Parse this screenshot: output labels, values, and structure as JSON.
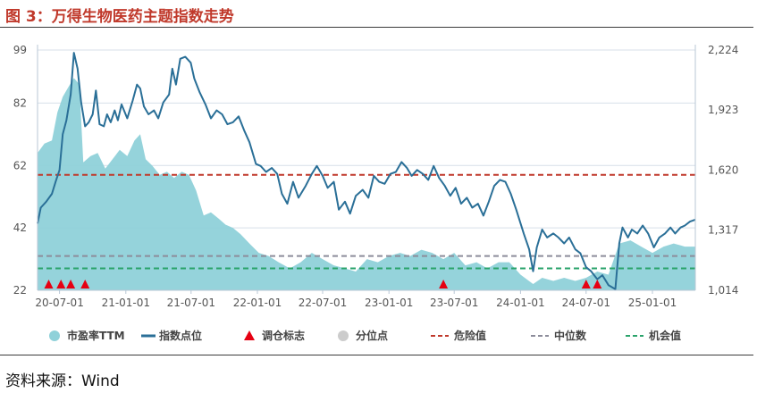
{
  "title": "图 3：万得生物医药主题指数走势",
  "source": "资料来源：Wind",
  "chart_data": {
    "type": "line",
    "left_axis": {
      "ticks": [
        22,
        42,
        62,
        82,
        99
      ],
      "range": [
        22,
        99
      ]
    },
    "right_axis": {
      "ticks": [
        1014,
        1317,
        1620,
        1923,
        2224
      ],
      "labels": [
        "1,014",
        "1,317",
        "1,620",
        "1,923",
        "2,224"
      ],
      "range": [
        1014,
        2224
      ]
    },
    "x_axis": {
      "range": [
        "2020-05-01",
        "2025-04-30"
      ],
      "ticks": [
        {
          "date": "2020-07-01",
          "label": "20-07-01"
        },
        {
          "date": "2021-01-01",
          "label": "21-01-01"
        },
        {
          "date": "2021-07-01",
          "label": "21-07-01"
        },
        {
          "date": "2022-01-01",
          "label": "22-01-01"
        },
        {
          "date": "2022-07-01",
          "label": "22-07-01"
        },
        {
          "date": "2023-01-01",
          "label": "23-01-01"
        },
        {
          "date": "2023-07-01",
          "label": "23-07-01"
        },
        {
          "date": "2024-01-01",
          "label": "24-01-01"
        },
        {
          "date": "2024-07-01",
          "label": "24-07-01"
        },
        {
          "date": "2025-01-01",
          "label": "25-01-01"
        }
      ]
    },
    "reference_lines": {
      "danger": 59,
      "median": 33,
      "opportunity": 29
    },
    "pe_ttm": [
      [
        "2020-05-01",
        66
      ],
      [
        "2020-05-20",
        69
      ],
      [
        "2020-06-10",
        70
      ],
      [
        "2020-06-25",
        79
      ],
      [
        "2020-07-10",
        84
      ],
      [
        "2020-07-25",
        87
      ],
      [
        "2020-08-10",
        90
      ],
      [
        "2020-08-25",
        88
      ],
      [
        "2020-09-05",
        63
      ],
      [
        "2020-09-25",
        65
      ],
      [
        "2020-10-15",
        66
      ],
      [
        "2020-11-05",
        61
      ],
      [
        "2020-11-25",
        64
      ],
      [
        "2020-12-15",
        67
      ],
      [
        "2021-01-05",
        65
      ],
      [
        "2021-01-25",
        70
      ],
      [
        "2021-02-10",
        72
      ],
      [
        "2021-02-25",
        64
      ],
      [
        "2021-03-15",
        62
      ],
      [
        "2021-04-05",
        59
      ],
      [
        "2021-04-25",
        60
      ],
      [
        "2021-05-15",
        58
      ],
      [
        "2021-06-05",
        60
      ],
      [
        "2021-06-25",
        59
      ],
      [
        "2021-07-15",
        54
      ],
      [
        "2021-08-05",
        46
      ],
      [
        "2021-08-25",
        47
      ],
      [
        "2021-09-15",
        45
      ],
      [
        "2021-10-05",
        43
      ],
      [
        "2021-10-25",
        42
      ],
      [
        "2021-11-15",
        40
      ],
      [
        "2021-12-10",
        37
      ],
      [
        "2022-01-05",
        34
      ],
      [
        "2022-02-01",
        33
      ],
      [
        "2022-03-01",
        31
      ],
      [
        "2022-04-01",
        29
      ],
      [
        "2022-05-01",
        31
      ],
      [
        "2022-06-01",
        34
      ],
      [
        "2022-07-01",
        32
      ],
      [
        "2022-08-01",
        30
      ],
      [
        "2022-09-01",
        29
      ],
      [
        "2022-10-01",
        28
      ],
      [
        "2022-11-01",
        32
      ],
      [
        "2022-12-01",
        31
      ],
      [
        "2023-01-01",
        33
      ],
      [
        "2023-02-01",
        34
      ],
      [
        "2023-03-01",
        33
      ],
      [
        "2023-04-01",
        35
      ],
      [
        "2023-05-01",
        34
      ],
      [
        "2023-06-01",
        32
      ],
      [
        "2023-07-01",
        34
      ],
      [
        "2023-08-01",
        30
      ],
      [
        "2023-09-01",
        31
      ],
      [
        "2023-10-01",
        29
      ],
      [
        "2023-11-01",
        31
      ],
      [
        "2023-12-01",
        31
      ],
      [
        "2024-01-01",
        27
      ],
      [
        "2024-02-05",
        24
      ],
      [
        "2024-03-01",
        26
      ],
      [
        "2024-04-01",
        25
      ],
      [
        "2024-05-01",
        26
      ],
      [
        "2024-06-01",
        25
      ],
      [
        "2024-07-01",
        26
      ],
      [
        "2024-08-01",
        28
      ],
      [
        "2024-09-01",
        27
      ],
      [
        "2024-10-01",
        37
      ],
      [
        "2024-11-01",
        38
      ],
      [
        "2024-12-01",
        36
      ],
      [
        "2025-01-01",
        34
      ],
      [
        "2025-02-01",
        36
      ],
      [
        "2025-03-01",
        37
      ],
      [
        "2025-04-01",
        36
      ],
      [
        "2025-04-30",
        36
      ]
    ],
    "index_points": [
      [
        "2020-05-01",
        1350
      ],
      [
        "2020-05-10",
        1430
      ],
      [
        "2020-05-25",
        1460
      ],
      [
        "2020-06-10",
        1500
      ],
      [
        "2020-06-20",
        1560
      ],
      [
        "2020-07-01",
        1620
      ],
      [
        "2020-07-10",
        1800
      ],
      [
        "2020-07-20",
        1870
      ],
      [
        "2020-08-01",
        2000
      ],
      [
        "2020-08-10",
        2210
      ],
      [
        "2020-08-20",
        2130
      ],
      [
        "2020-08-30",
        1960
      ],
      [
        "2020-09-10",
        1840
      ],
      [
        "2020-09-20",
        1860
      ],
      [
        "2020-10-01",
        1900
      ],
      [
        "2020-10-10",
        2020
      ],
      [
        "2020-10-20",
        1850
      ],
      [
        "2020-11-01",
        1840
      ],
      [
        "2020-11-10",
        1900
      ],
      [
        "2020-11-20",
        1860
      ],
      [
        "2020-12-01",
        1920
      ],
      [
        "2020-12-10",
        1870
      ],
      [
        "2020-12-20",
        1950
      ],
      [
        "2021-01-05",
        1880
      ],
      [
        "2021-01-20",
        1970
      ],
      [
        "2021-02-01",
        2050
      ],
      [
        "2021-02-10",
        2030
      ],
      [
        "2021-02-20",
        1940
      ],
      [
        "2021-03-05",
        1900
      ],
      [
        "2021-03-20",
        1920
      ],
      [
        "2021-04-01",
        1880
      ],
      [
        "2021-04-15",
        1960
      ],
      [
        "2021-05-01",
        2000
      ],
      [
        "2021-05-10",
        2130
      ],
      [
        "2021-05-20",
        2050
      ],
      [
        "2021-06-01",
        2180
      ],
      [
        "2021-06-15",
        2190
      ],
      [
        "2021-06-30",
        2160
      ],
      [
        "2021-07-10",
        2080
      ],
      [
        "2021-07-25",
        2010
      ],
      [
        "2021-08-10",
        1950
      ],
      [
        "2021-08-25",
        1880
      ],
      [
        "2021-09-10",
        1920
      ],
      [
        "2021-09-25",
        1900
      ],
      [
        "2021-10-10",
        1850
      ],
      [
        "2021-10-25",
        1860
      ],
      [
        "2021-11-10",
        1890
      ],
      [
        "2021-11-25",
        1820
      ],
      [
        "2021-12-10",
        1760
      ],
      [
        "2021-12-28",
        1650
      ],
      [
        "2022-01-10",
        1640
      ],
      [
        "2022-01-25",
        1610
      ],
      [
        "2022-02-10",
        1630
      ],
      [
        "2022-02-25",
        1600
      ],
      [
        "2022-03-10",
        1500
      ],
      [
        "2022-03-25",
        1450
      ],
      [
        "2022-04-10",
        1560
      ],
      [
        "2022-04-25",
        1480
      ],
      [
        "2022-05-15",
        1540
      ],
      [
        "2022-06-01",
        1600
      ],
      [
        "2022-06-15",
        1640
      ],
      [
        "2022-07-01",
        1590
      ],
      [
        "2022-07-15",
        1530
      ],
      [
        "2022-08-01",
        1560
      ],
      [
        "2022-08-15",
        1420
      ],
      [
        "2022-09-01",
        1460
      ],
      [
        "2022-09-15",
        1400
      ],
      [
        "2022-10-01",
        1490
      ],
      [
        "2022-10-20",
        1520
      ],
      [
        "2022-11-05",
        1480
      ],
      [
        "2022-11-20",
        1590
      ],
      [
        "2022-12-05",
        1560
      ],
      [
        "2022-12-20",
        1550
      ],
      [
        "2023-01-05",
        1600
      ],
      [
        "2023-01-20",
        1610
      ],
      [
        "2023-02-05",
        1660
      ],
      [
        "2023-02-20",
        1630
      ],
      [
        "2023-03-05",
        1590
      ],
      [
        "2023-03-20",
        1620
      ],
      [
        "2023-04-05",
        1600
      ],
      [
        "2023-04-20",
        1570
      ],
      [
        "2023-05-05",
        1640
      ],
      [
        "2023-05-20",
        1580
      ],
      [
        "2023-06-05",
        1540
      ],
      [
        "2023-06-20",
        1490
      ],
      [
        "2023-07-05",
        1530
      ],
      [
        "2023-07-20",
        1450
      ],
      [
        "2023-08-05",
        1480
      ],
      [
        "2023-08-20",
        1430
      ],
      [
        "2023-09-05",
        1450
      ],
      [
        "2023-09-20",
        1390
      ],
      [
        "2023-10-05",
        1460
      ],
      [
        "2023-10-20",
        1540
      ],
      [
        "2023-11-05",
        1570
      ],
      [
        "2023-11-20",
        1560
      ],
      [
        "2023-12-05",
        1500
      ],
      [
        "2023-12-20",
        1420
      ],
      [
        "2024-01-10",
        1300
      ],
      [
        "2024-01-25",
        1220
      ],
      [
        "2024-02-05",
        1110
      ],
      [
        "2024-02-15",
        1230
      ],
      [
        "2024-03-01",
        1320
      ],
      [
        "2024-03-15",
        1280
      ],
      [
        "2024-04-01",
        1300
      ],
      [
        "2024-04-15",
        1280
      ],
      [
        "2024-05-01",
        1250
      ],
      [
        "2024-05-15",
        1280
      ],
      [
        "2024-06-01",
        1220
      ],
      [
        "2024-06-15",
        1200
      ],
      [
        "2024-07-01",
        1130
      ],
      [
        "2024-07-15",
        1110
      ],
      [
        "2024-08-01",
        1070
      ],
      [
        "2024-08-15",
        1090
      ],
      [
        "2024-09-01",
        1040
      ],
      [
        "2024-09-20",
        1020
      ],
      [
        "2024-10-01",
        1250
      ],
      [
        "2024-10-10",
        1330
      ],
      [
        "2024-10-25",
        1280
      ],
      [
        "2024-11-05",
        1320
      ],
      [
        "2024-11-20",
        1300
      ],
      [
        "2024-12-05",
        1340
      ],
      [
        "2024-12-20",
        1300
      ],
      [
        "2025-01-05",
        1230
      ],
      [
        "2025-01-20",
        1280
      ],
      [
        "2025-02-05",
        1300
      ],
      [
        "2025-02-20",
        1330
      ],
      [
        "2025-03-05",
        1300
      ],
      [
        "2025-03-20",
        1330
      ],
      [
        "2025-04-01",
        1340
      ],
      [
        "2025-04-15",
        1360
      ],
      [
        "2025-04-30",
        1370
      ]
    ],
    "rebalance_markers": [
      "2020-06-01",
      "2020-07-05",
      "2020-08-01",
      "2020-09-10",
      "2023-06-01",
      "2024-07-01",
      "2024-08-01"
    ],
    "legend": [
      {
        "label": "市盈率TTM",
        "symbol": "dot",
        "color": "#8fd1d9"
      },
      {
        "label": "指数点位",
        "symbol": "line",
        "color": "#2a6f97"
      },
      {
        "label": "调仓标志",
        "symbol": "triangle",
        "color": "#e60012"
      },
      {
        "label": "分位点",
        "symbol": "dot",
        "color": "#cccccc"
      },
      {
        "label": "危险值",
        "symbol": "dash",
        "color": "#c0392b"
      },
      {
        "label": "中位数",
        "symbol": "dash",
        "color": "#8c8c9a"
      },
      {
        "label": "机会值",
        "symbol": "dash",
        "color": "#2aa36b"
      }
    ],
    "colors": {
      "area": "#8fd1d9",
      "line": "#2a6f97",
      "danger": "#c0392b",
      "median": "#8c8c9a",
      "opportunity": "#2aa36b",
      "marker": "#e60012"
    }
  }
}
